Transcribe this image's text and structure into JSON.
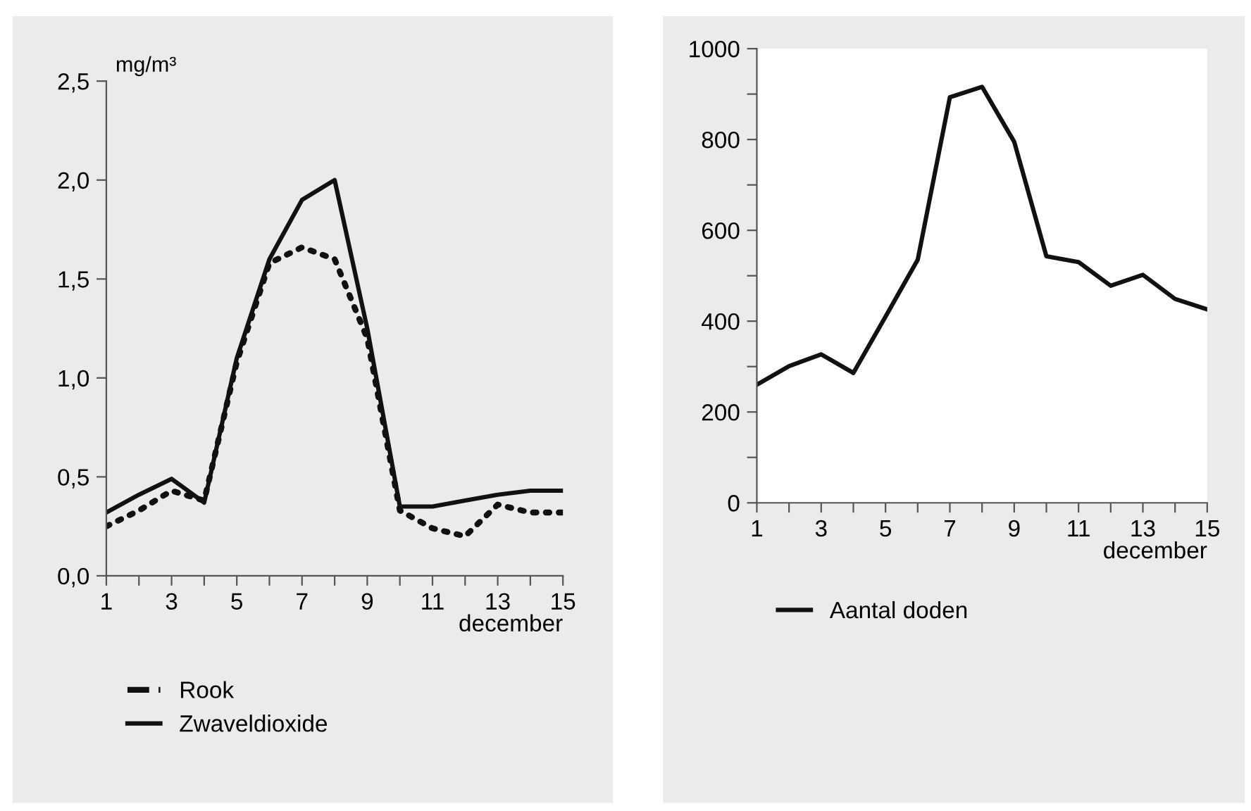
{
  "chart_data": [
    {
      "type": "line",
      "ylabel": "mg/m³",
      "xlabel": "december",
      "x": [
        1,
        2,
        3,
        4,
        5,
        6,
        7,
        8,
        9,
        10,
        11,
        12,
        13,
        14,
        15
      ],
      "series": [
        {
          "name": "Rook",
          "color": "#111111",
          "line_style": "dotted",
          "values": [
            0.25,
            0.33,
            0.43,
            0.38,
            1.08,
            1.58,
            1.66,
            1.6,
            1.2,
            0.33,
            0.24,
            0.2,
            0.36,
            0.32,
            0.32
          ]
        },
        {
          "name": "Zwaveldioxide",
          "color": "#111111",
          "line_style": "solid",
          "values": [
            0.32,
            0.41,
            0.49,
            0.37,
            1.1,
            1.6,
            1.9,
            2.0,
            1.25,
            0.35,
            0.35,
            0.38,
            0.41,
            0.43,
            0.43
          ]
        }
      ],
      "xlim": [
        1,
        15
      ],
      "xticks": [
        1,
        {
          "value": 2,
          "label": null
        },
        3,
        {
          "value": 4,
          "label": null
        },
        5,
        {
          "value": 6,
          "label": null
        },
        7,
        {
          "value": 8,
          "label": null
        },
        9,
        {
          "value": 10,
          "label": null
        },
        11,
        {
          "value": 12,
          "label": null
        },
        13,
        {
          "value": 14,
          "label": null
        },
        15
      ],
      "ylim": [
        0,
        2.5
      ],
      "yticks": [
        {
          "value": 0,
          "label": "0,0"
        },
        {
          "value": 0.5,
          "label": "0,5"
        },
        {
          "value": 1.0,
          "label": "1,0"
        },
        {
          "value": 1.5,
          "label": "1,5"
        },
        {
          "value": 2.0,
          "label": "2,0"
        },
        {
          "value": 2.5,
          "label": "2,5"
        }
      ],
      "grid": false,
      "legend": "bottom",
      "marker": "none"
    },
    {
      "type": "line",
      "xlabel": "december",
      "x": [
        1,
        2,
        3,
        4,
        5,
        6,
        7,
        8,
        9,
        10,
        11,
        12,
        13,
        14,
        15
      ],
      "series": [
        {
          "name": "Aantal doden",
          "color": "#111111",
          "line_style": "solid",
          "values": [
            260,
            301,
            327,
            286,
            410,
            535,
            893,
            916,
            795,
            543,
            530,
            478,
            502,
            449,
            426
          ]
        }
      ],
      "xlim": [
        1,
        15
      ],
      "xticks": [
        1,
        {
          "value": 2,
          "label": null
        },
        3,
        {
          "value": 4,
          "label": null
        },
        5,
        {
          "value": 6,
          "label": null
        },
        7,
        {
          "value": 8,
          "label": null
        },
        9,
        {
          "value": 10,
          "label": null
        },
        11,
        {
          "value": 12,
          "label": null
        },
        13,
        {
          "value": 14,
          "label": null
        },
        15
      ],
      "ylim": [
        0,
        1000
      ],
      "yticks": [
        0,
        {
          "value": 100,
          "label": null
        },
        200,
        {
          "value": 300,
          "label": null
        },
        400,
        {
          "value": 500,
          "label": null
        },
        600,
        {
          "value": 700,
          "label": null
        },
        800,
        {
          "value": 900,
          "label": null
        },
        1000
      ],
      "grid": false,
      "legend": "bottom",
      "marker": "none"
    }
  ]
}
